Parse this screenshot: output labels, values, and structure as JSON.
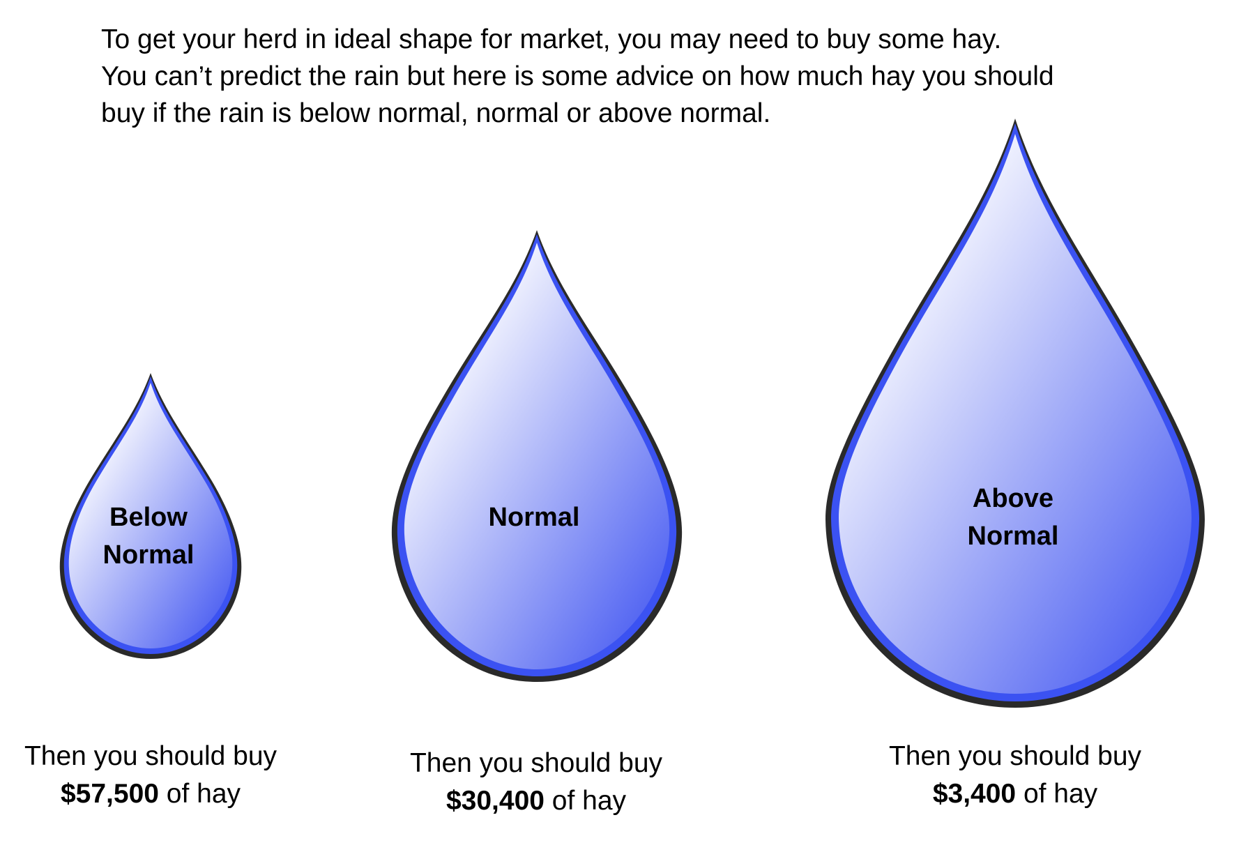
{
  "intro": {
    "line1": "To get your herd in ideal shape for market, you may need to buy some hay.",
    "line2": "You can’t predict the rain but here is some advice on how much hay you should",
    "line3": "buy if the rain is below normal, normal or above normal."
  },
  "scenarios": [
    {
      "label_line1": "Below",
      "label_line2": "Normal",
      "advice_prefix": "Then you should buy",
      "amount": "$57,500",
      "amount_suffix": " of hay"
    },
    {
      "label_line1": "Normal",
      "label_line2": "",
      "advice_prefix": "Then you should buy",
      "amount": "$30,400",
      "amount_suffix": " of hay"
    },
    {
      "label_line1": "Above",
      "label_line2": "Normal",
      "advice_prefix": "Then you should buy",
      "amount": "$3,400",
      "amount_suffix": " of hay"
    }
  ],
  "colors": {
    "drop_fill_light": "#ffffff",
    "drop_fill_dark": "#3a4ff0",
    "drop_rim": "#3b52f2",
    "drop_outline": "#2a2a2a"
  }
}
